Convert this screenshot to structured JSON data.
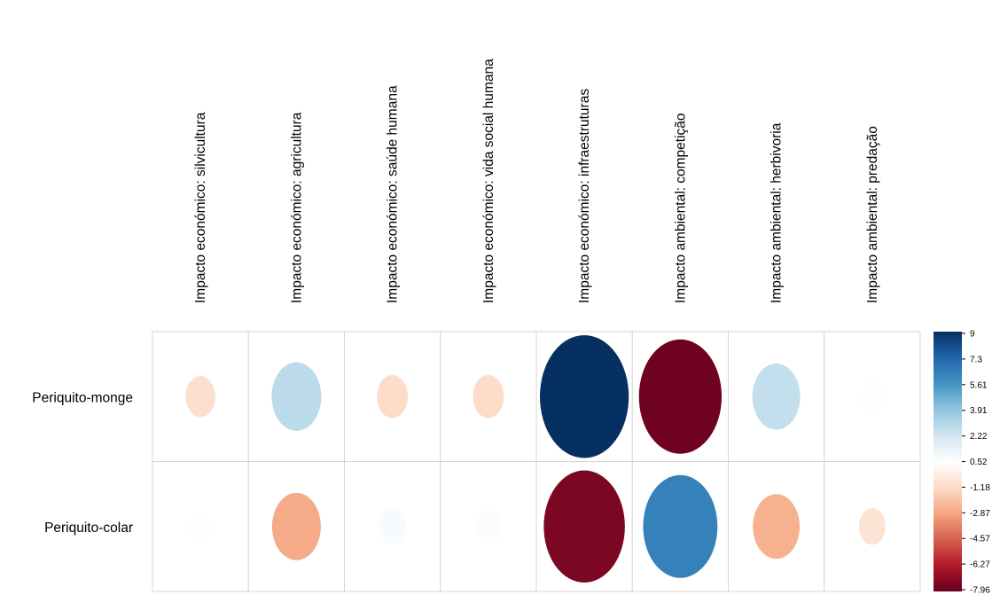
{
  "chart_data": {
    "type": "heatmap",
    "subtype": "correlation-circles",
    "columns": [
      "Impacto económico: silvicultura",
      "Impacto económico: agricultura",
      "Impacto económico: saúde humana",
      "Impacto económico: vida social humana",
      "Impacto económico: infraestruturas",
      "Impacto ambiental: competição",
      "Impacto ambiental: herbivoria",
      "Impacto ambiental: predação"
    ],
    "rows": [
      {
        "name": "Periquito-monge",
        "values": [
          -1.0,
          2.8,
          -1.1,
          -1.1,
          9.0,
          -7.8,
          2.6,
          0.6
        ]
      },
      {
        "name": "Periquito-colar",
        "values": [
          0.6,
          -2.7,
          0.8,
          0.7,
          -7.5,
          6.3,
          -2.5,
          -0.8
        ]
      }
    ],
    "color_scale": {
      "min": -7.96,
      "max": 9,
      "ticks": [
        "9",
        "7.3",
        "5.61",
        "3.91",
        "2.22",
        "0.52",
        "-1.18",
        "-2.87",
        "-4.57",
        "-6.27",
        "-7.96"
      ],
      "colors": [
        "#67001f",
        "#b2182b",
        "#d6604d",
        "#f4a582",
        "#fddbc7",
        "#ffffff",
        "#d1e5f0",
        "#92c5de",
        "#4393c3",
        "#2166ac",
        "#053061"
      ]
    },
    "grid": true,
    "legend_position": "right"
  }
}
